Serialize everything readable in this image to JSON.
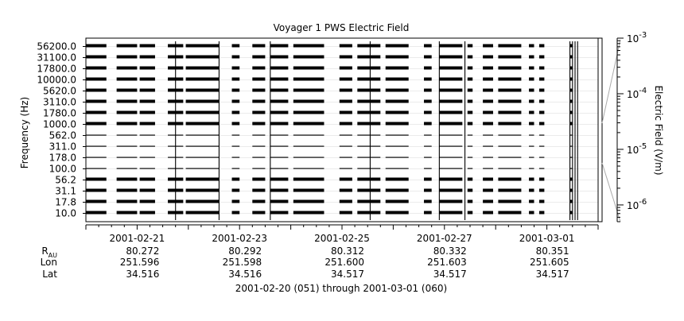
{
  "chart_data": {
    "type": "heatmap",
    "title": "Voyager 1 PWS Electric Field",
    "ylabel": "Frequency (Hz)",
    "colorbar_label": "Electric Field (V/m)",
    "xlabel": "2001-02-20 (051) through 2001-03-01 (060)",
    "x_range": [
      "2001-02-20",
      "2001-03-01"
    ],
    "y_scale": "log",
    "channels_hz": [
      "10.0",
      "17.8",
      "31.1",
      "56.2",
      "100.0",
      "178.0",
      "311.0",
      "562.0",
      "1000.0",
      "1780.0",
      "3110.0",
      "5620.0",
      "10000.0",
      "17800.0",
      "31100.0",
      "56200.0"
    ],
    "colorbar": {
      "scale": "log",
      "range": [
        5e-07,
        0.001
      ],
      "ticks": [
        "10",
        "10",
        "10",
        "10"
      ],
      "exponents": [
        "-3",
        "-4",
        "-5",
        "-6"
      ]
    },
    "x_ticks": [
      "2001-02-21",
      "2001-02-23",
      "2001-02-25",
      "2001-02-27",
      "2001-03-01"
    ],
    "ephemeris": [
      {
        "label": "R",
        "subscript": "AU",
        "values": [
          "80.272",
          "80.292",
          "80.312",
          "80.332",
          "80.351"
        ]
      },
      {
        "label": "Lon",
        "subscript": "",
        "values": [
          "251.596",
          "251.598",
          "251.600",
          "251.603",
          "251.605"
        ]
      },
      {
        "label": "Lat",
        "subscript": "",
        "values": [
          "34.516",
          "34.516",
          "34.517",
          "34.517",
          "34.517"
        ]
      }
    ],
    "coverage_segments": [
      [
        0.0,
        0.4
      ],
      [
        0.6,
        1.0
      ],
      [
        1.05,
        1.35
      ],
      [
        1.6,
        1.9
      ],
      [
        1.95,
        2.6
      ],
      [
        2.85,
        3.0
      ],
      [
        3.25,
        3.5
      ],
      [
        3.6,
        3.95
      ],
      [
        4.05,
        4.65
      ],
      [
        4.95,
        5.2
      ],
      [
        5.3,
        5.75
      ],
      [
        5.85,
        6.3
      ],
      [
        6.6,
        6.75
      ],
      [
        6.9,
        7.35
      ],
      [
        7.45,
        7.55
      ],
      [
        7.75,
        7.95
      ],
      [
        8.05,
        8.5
      ],
      [
        8.65,
        8.75
      ],
      [
        8.85,
        8.95
      ],
      [
        9.45,
        9.5
      ]
    ],
    "spike_days": [
      1.75,
      2.6,
      3.6,
      5.55,
      6.9,
      7.4,
      9.45,
      9.5,
      9.55,
      9.6
    ]
  }
}
